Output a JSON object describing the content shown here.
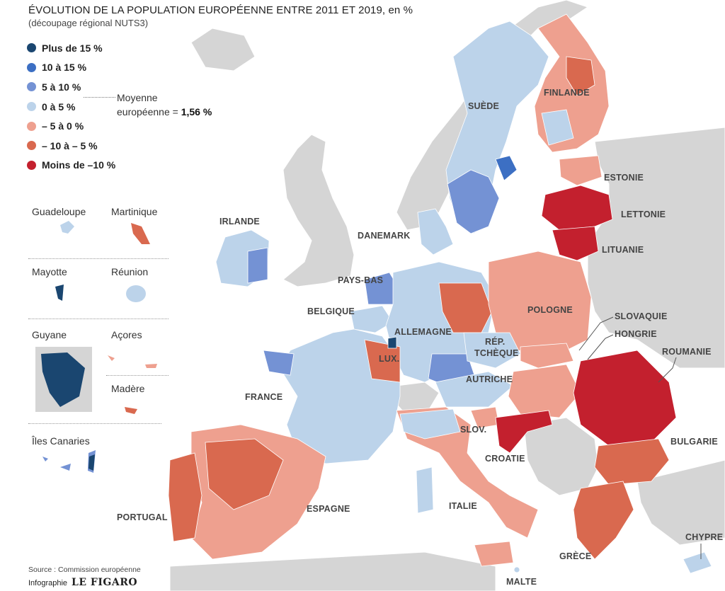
{
  "title": "ÉVOLUTION DE LA POPULATION EUROPÉENNE ENTRE 2011 ET 2019, en %",
  "subtitle": "(découpage régional NUTS3)",
  "legend": [
    {
      "label": "Plus de 15 %",
      "color": "#1a4670"
    },
    {
      "label": "10 à 15 %",
      "color": "#3c6fc3"
    },
    {
      "label": "5 à 10 %",
      "color": "#7492d4"
    },
    {
      "label": "0 à 5 %",
      "color": "#bcd3ea"
    },
    {
      "label": "– 5 à 0 %",
      "color": "#eea08f"
    },
    {
      "label": "– 10 à – 5 %",
      "color": "#d9694f"
    },
    {
      "label": "Moins de –10 %",
      "color": "#c3202e"
    }
  ],
  "average": {
    "label": "Moyenne",
    "label2": "européenne =",
    "value": "1,56 %"
  },
  "insets": {
    "guadeloupe": "Guadeloupe",
    "martinique": "Martinique",
    "mayotte": "Mayotte",
    "reunion": "Réunion",
    "guyane": "Guyane",
    "acores": "Açores",
    "madere": "Madère",
    "canaries": "Îles Canaries"
  },
  "countries": {
    "suede": "SUÈDE",
    "finlande": "FINLANDE",
    "estonie": "ESTONIE",
    "lettonie": "LETTONIE",
    "lituanie": "LITUANIE",
    "irlande": "IRLANDE",
    "danemark": "DANEMARK",
    "pays_bas": "PAYS-BAS",
    "belgique": "BELGIQUE",
    "allemagne": "ALLEMAGNE",
    "pologne": "POLOGNE",
    "slovaquie": "SLOVAQUIE",
    "hongrie": "HONGRIE",
    "rep_tcheque_1": "RÉP.",
    "rep_tcheque_2": "TCHÈQUE",
    "lux": "LUX.",
    "autriche": "AUTRICHE",
    "roumanie": "ROUMANIE",
    "france": "FRANCE",
    "slov": "SLOV.",
    "croatie": "CROATIE",
    "bulgarie": "BULGARIE",
    "portugal": "PORTUGAL",
    "espagne": "ESPAGNE",
    "italie": "ITALIE",
    "chypre": "CHYPRE",
    "grece": "GRÈCE",
    "malte": "MALTE"
  },
  "source": "Source : Commission européenne",
  "credit": {
    "prefix": "Infographie",
    "logo": "LE FIGARO"
  }
}
